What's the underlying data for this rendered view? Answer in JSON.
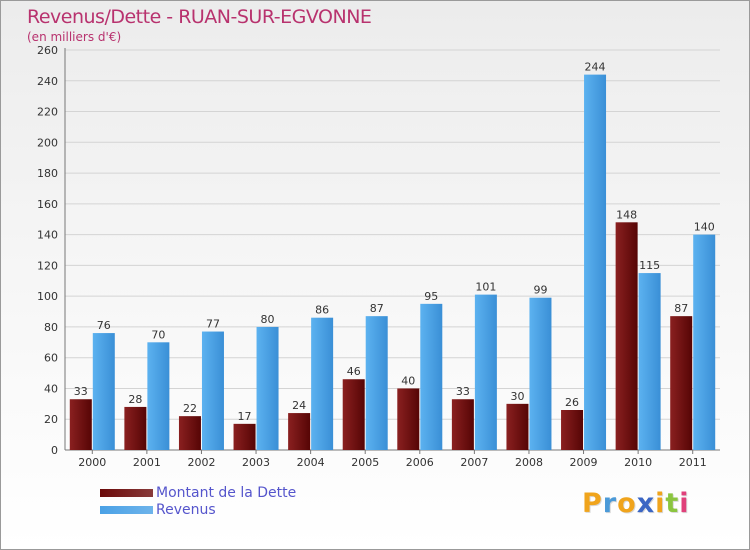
{
  "chart_data": {
    "type": "bar",
    "title": "Revenus/Dette - RUAN-SUR-EGVONNE",
    "subtitle": "(en milliers d'€)",
    "xlabel": "",
    "ylabel": "",
    "ylim": [
      0,
      260
    ],
    "yticks": [
      0,
      20,
      40,
      60,
      80,
      100,
      120,
      140,
      160,
      180,
      200,
      220,
      240,
      260
    ],
    "grid": true,
    "categories": [
      "2000",
      "2001",
      "2002",
      "2003",
      "2004",
      "2005",
      "2006",
      "2007",
      "2008",
      "2009",
      "2010",
      "2011"
    ],
    "series": [
      {
        "name": "Montant de la Dette",
        "color": "#6b0a0a",
        "values": [
          33,
          28,
          22,
          17,
          24,
          46,
          40,
          33,
          30,
          26,
          148,
          87
        ]
      },
      {
        "name": "Revenus",
        "color": "#4aa1e6",
        "values": [
          76,
          70,
          77,
          80,
          86,
          87,
          95,
          101,
          99,
          244,
          115,
          140
        ]
      }
    ]
  },
  "legend": {
    "position": "bottom-left",
    "items": [
      {
        "label": "Montant de la Dette",
        "color": "#6b0a0a"
      },
      {
        "label": "Revenus",
        "color": "#4aa1e6"
      }
    ]
  },
  "logo": {
    "letters": [
      {
        "char": "P",
        "color": "#f0a41c"
      },
      {
        "char": "r",
        "color": "#4b9ad8"
      },
      {
        "char": "o",
        "color": "#f0a41c"
      },
      {
        "char": "x",
        "color": "#3b66c4"
      },
      {
        "char": "i",
        "color": "#f0a41c"
      },
      {
        "char": "t",
        "color": "#8bc53f"
      },
      {
        "char": "i",
        "color": "#e0407a"
      }
    ]
  }
}
